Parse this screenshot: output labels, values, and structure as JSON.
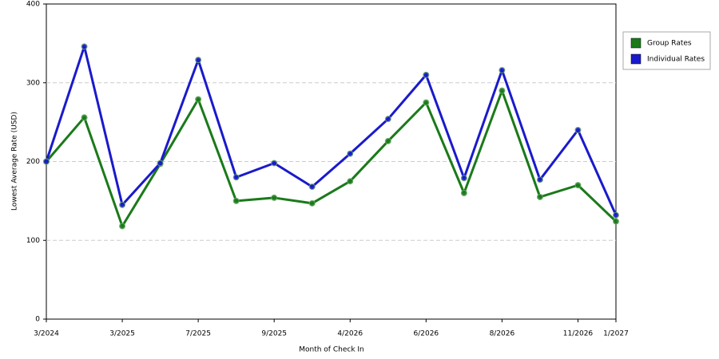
{
  "chart_data": {
    "type": "line",
    "x_label": "Month of Check In",
    "y_label": "Lowest Average Rate (USD)",
    "categories": [
      "3/2024",
      null,
      "3/2025",
      null,
      "7/2025",
      null,
      "9/2025",
      null,
      "4/2026",
      null,
      "6/2026",
      null,
      "8/2026",
      null,
      "11/2026",
      "1/2027"
    ],
    "series": [
      {
        "name": "Group Rates",
        "color": "#1a7a1a",
        "values": [
          200,
          256,
          118,
          197,
          279,
          150,
          154,
          147,
          175,
          226,
          275,
          160,
          290,
          155,
          170,
          124
        ]
      },
      {
        "name": "Individual Rates",
        "color": "#1a1acc",
        "values": [
          200,
          346,
          145,
          198,
          329,
          180,
          198,
          168,
          210,
          254,
          310,
          179,
          316,
          177,
          240,
          132
        ]
      }
    ],
    "ylim": [
      0,
      400
    ],
    "yticks": [
      0,
      100,
      200,
      300,
      400
    ],
    "grid": true
  }
}
